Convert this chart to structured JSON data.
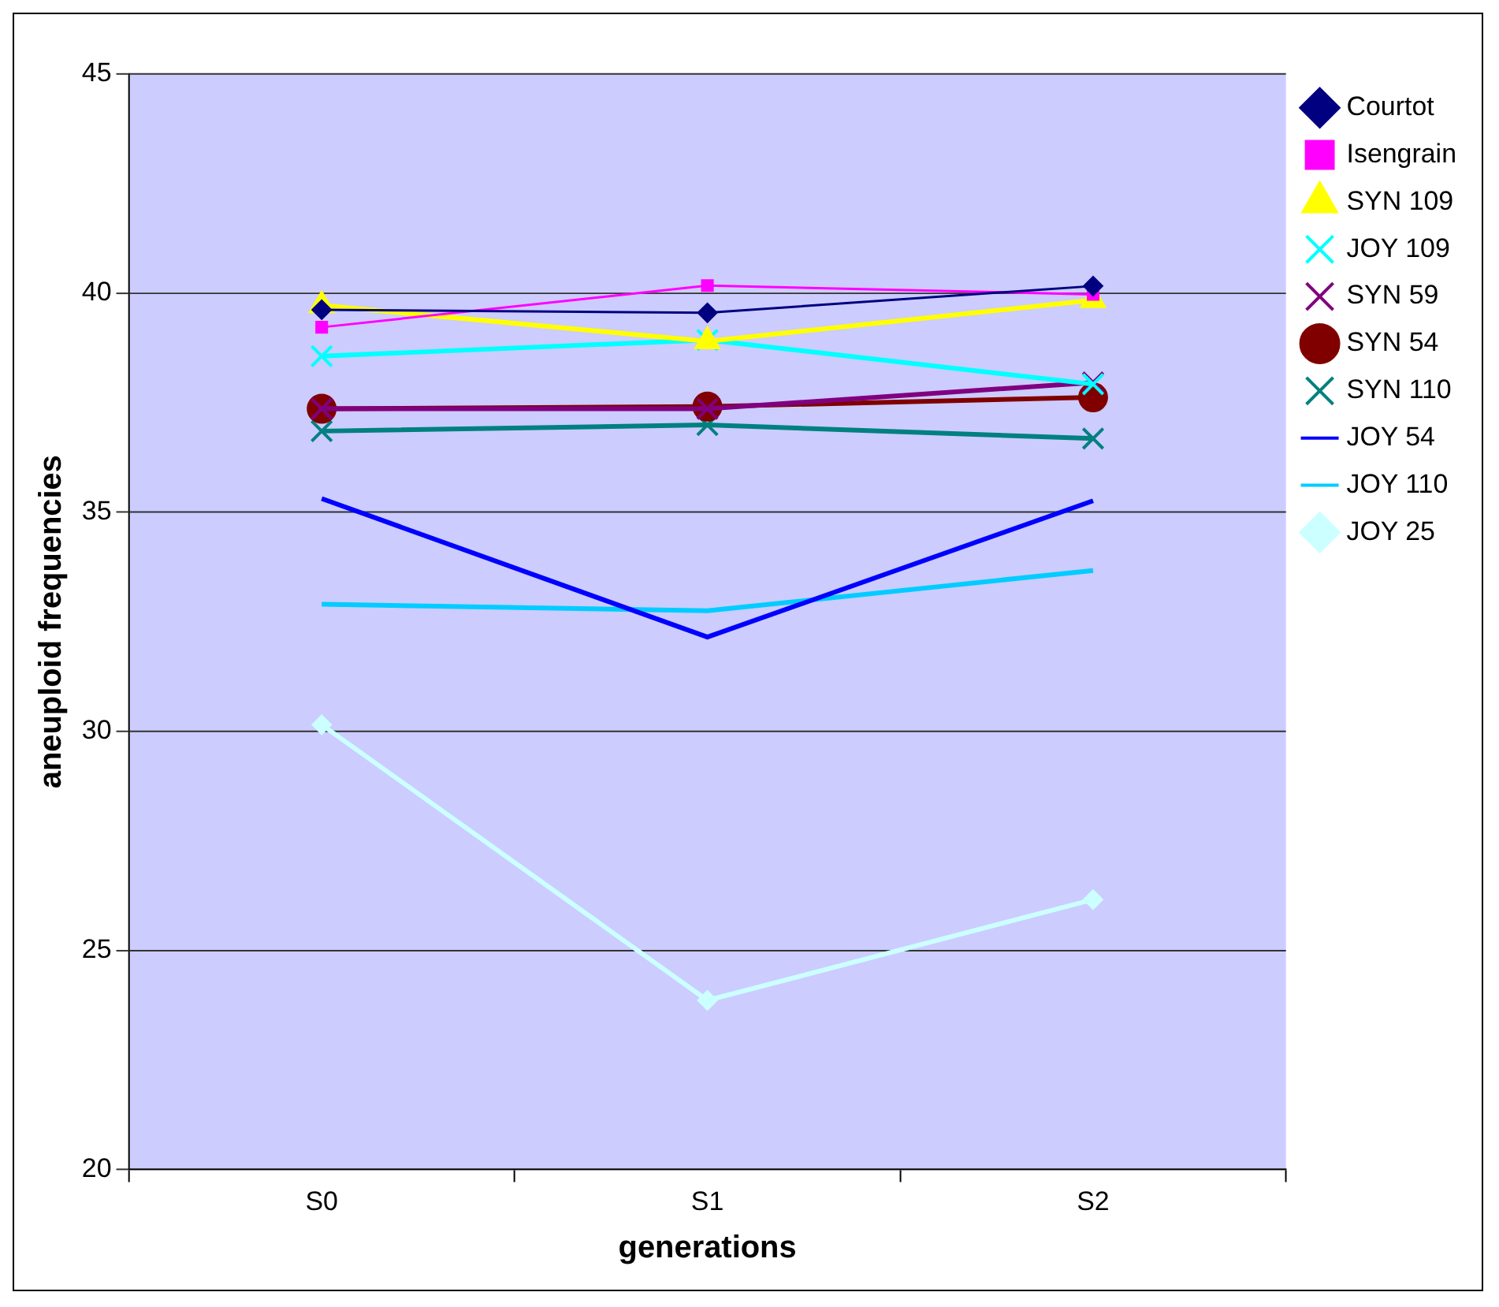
{
  "chart_data": {
    "type": "line",
    "xlabel": "generations",
    "ylabel": "aneuploid frequencies",
    "categories": [
      "S0",
      "S1",
      "S2"
    ],
    "ylim": [
      20,
      45
    ],
    "yticks": [
      20,
      25,
      30,
      35,
      40,
      45
    ],
    "grid": "y",
    "legend": "right",
    "series": [
      {
        "name": "Courtot",
        "color": "#000080",
        "marker": "diamond",
        "values": [
          39.62,
          39.55,
          40.16
        ]
      },
      {
        "name": "Isengrain",
        "color": "#ff00ff",
        "marker": "square",
        "values": [
          39.22,
          40.17,
          39.97
        ]
      },
      {
        "name": "SYN 109",
        "color": "#ffff00",
        "marker": "triangle",
        "values": [
          39.72,
          38.9,
          39.84
        ]
      },
      {
        "name": "JOY 109",
        "color": "#00ffff",
        "marker": "cross",
        "values": [
          38.56,
          38.93,
          37.92
        ]
      },
      {
        "name": "SYN 59",
        "color": "#800080",
        "marker": "cross",
        "values": [
          37.36,
          37.36,
          37.96
        ]
      },
      {
        "name": "SYN 54",
        "color": "#800000",
        "marker": "circle",
        "values": [
          37.36,
          37.41,
          37.62
        ]
      },
      {
        "name": "SYN 110",
        "color": "#008080",
        "marker": "cross",
        "values": [
          36.85,
          36.99,
          36.68
        ]
      },
      {
        "name": "JOY 54",
        "color": "#0000ff",
        "marker": "none",
        "values": [
          35.31,
          32.15,
          35.26
        ]
      },
      {
        "name": "JOY 110",
        "color": "#00ccff",
        "marker": "none",
        "values": [
          32.9,
          32.75,
          33.67
        ]
      },
      {
        "name": "JOY 25",
        "color": "#ccffff",
        "marker": "diamond",
        "values": [
          30.15,
          23.86,
          26.16
        ]
      }
    ]
  }
}
